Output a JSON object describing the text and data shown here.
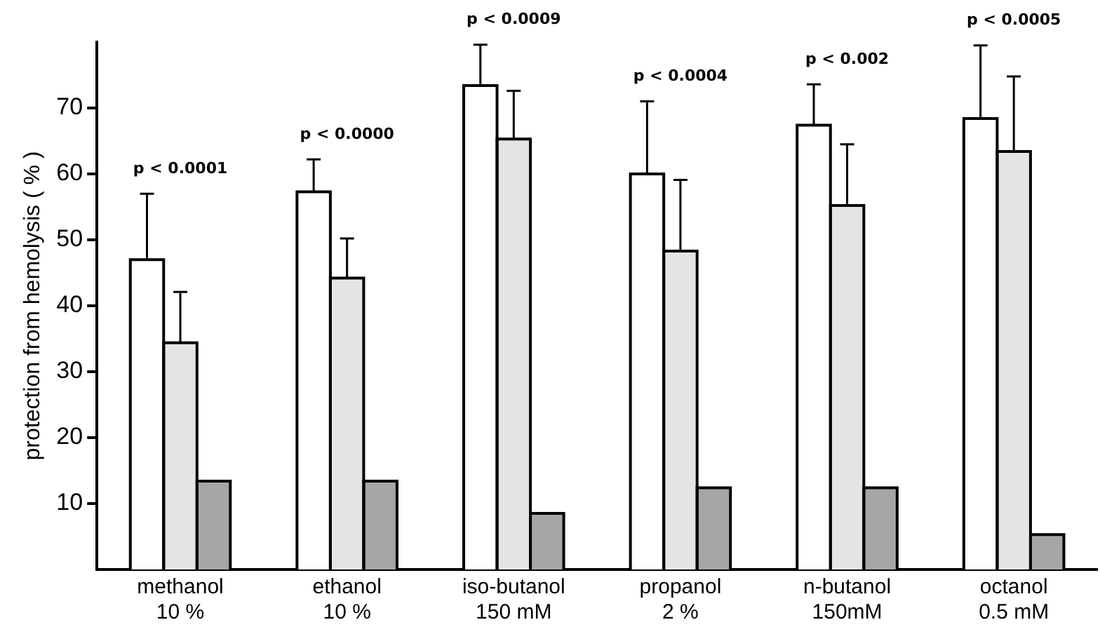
{
  "chart_data": {
    "type": "bar",
    "ylabel": "protection from hemolysis ( % )",
    "categories": [
      "methanol\n10 %",
      "ethanol\n10 %",
      "iso-butanol\n150 mM",
      "propanol\n2 %",
      "n-butanol\n150mM",
      "octanol\n0.5 mM"
    ],
    "series": [
      {
        "color": "#ffffff",
        "values": [
          47,
          57.3,
          73.4,
          60,
          67.4,
          68.4
        ],
        "errors": [
          [
            47,
            57
          ],
          [
            57.3,
            62.2
          ],
          [
            73.4,
            79.6
          ],
          [
            60,
            71
          ],
          [
            67.4,
            73.6
          ],
          [
            68.4,
            79.5
          ]
        ]
      },
      {
        "color": "#e4e4e4",
        "values": [
          34.4,
          44.2,
          65.3,
          48.3,
          55.2,
          63.4
        ],
        "errors": [
          [
            34.4,
            42.1
          ],
          [
            44.2,
            50.2
          ],
          [
            65.3,
            72.6
          ],
          [
            48.3,
            59.1
          ],
          [
            55.2,
            64.5
          ],
          [
            63.4,
            74.8
          ]
        ]
      },
      {
        "color": "#a6a6a6",
        "values": [
          13.4,
          13.4,
          8.5,
          12.4,
          12.4,
          5.3
        ]
      }
    ],
    "ylim": [
      0,
      80
    ],
    "yticks": [
      10,
      20,
      30,
      40,
      50,
      60,
      70
    ],
    "annotations": [
      "p < 0.0001",
      "p < 0.0000",
      "p < 0.0009",
      "p < 0.0004",
      "p < 0.002",
      "p < 0.0005"
    ],
    "grid": false,
    "legend": false
  }
}
